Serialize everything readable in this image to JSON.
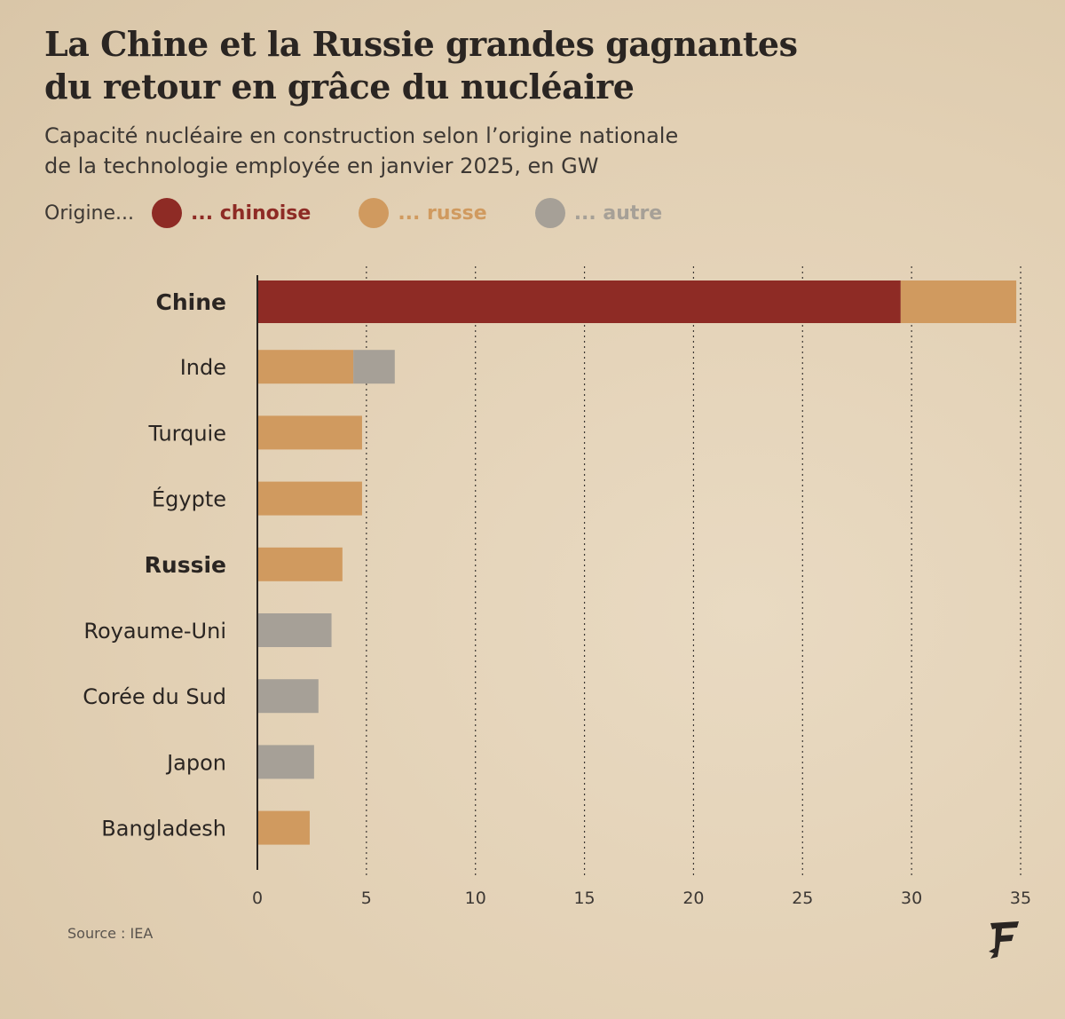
{
  "title": {
    "line1": "La Chine et la Russie grandes gagnantes",
    "line2": "du retour en grâce du nucléaire"
  },
  "subtitle": {
    "line1": "Capacité nucléaire en construction selon l’origine nationale",
    "line2": "de la technologie employée en janvier 2025, en GW"
  },
  "legend": {
    "label": "Origine...",
    "items": [
      {
        "label": "... chinoise",
        "color": "#8e2b25"
      },
      {
        "label": "... russe",
        "color": "#d09a5f"
      },
      {
        "label": "... autre",
        "color": "#a6a097"
      }
    ]
  },
  "chart_data": {
    "type": "bar",
    "orientation": "horizontal",
    "stacked": true,
    "categories": [
      "Chine",
      "Inde",
      "Turquie",
      "Égypte",
      "Russie",
      "Royaume-Uni",
      "Corée du Sud",
      "Japon",
      "Bangladesh"
    ],
    "bold_categories": [
      "Chine",
      "Russie"
    ],
    "series": [
      {
        "name": "... chinoise",
        "color": "#8e2b25",
        "values": [
          29.5,
          0,
          0,
          0,
          0,
          0,
          0,
          0,
          0
        ]
      },
      {
        "name": "... russe",
        "color": "#d09a5f",
        "values": [
          5.3,
          4.4,
          4.8,
          4.8,
          3.9,
          0,
          0,
          0,
          2.4
        ]
      },
      {
        "name": "... autre",
        "color": "#a6a097",
        "values": [
          0,
          1.9,
          0,
          0,
          0,
          3.4,
          2.8,
          2.6,
          0
        ]
      }
    ],
    "xticks": [
      "0",
      "5",
      "10",
      "15",
      "20",
      "25",
      "30",
      "35"
    ],
    "xlim": [
      0,
      35
    ],
    "grid": "vertical dotted"
  },
  "source": "Source : IEA"
}
